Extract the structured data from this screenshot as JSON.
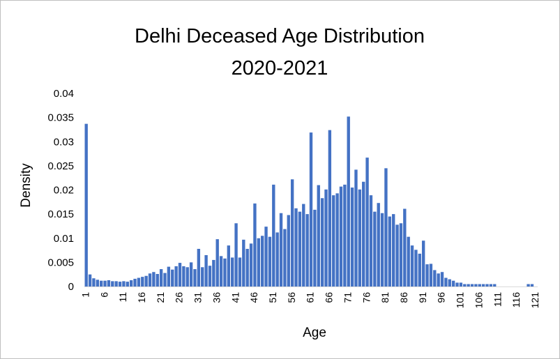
{
  "chart_data": {
    "type": "bar",
    "title_lines": [
      "Delhi Deceased Age Distribution",
      "2020-2021"
    ],
    "xlabel": "Age",
    "ylabel": "Density",
    "ylim": [
      0,
      0.04
    ],
    "yticks": [
      0,
      0.005,
      0.01,
      0.015,
      0.02,
      0.025,
      0.03,
      0.035,
      0.04
    ],
    "ytick_labels": [
      "0",
      "0.005",
      "0.01",
      "0.015",
      "0.02",
      "0.025",
      "0.03",
      "0.035",
      "0.04"
    ],
    "xtick_labels": [
      "1",
      "6",
      "11",
      "16",
      "21",
      "26",
      "31",
      "36",
      "41",
      "46",
      "51",
      "56",
      "61",
      "66",
      "71",
      "76",
      "81",
      "86",
      "91",
      "96",
      "101",
      "106",
      "111",
      "116",
      "121"
    ],
    "grid": false,
    "legend": "none",
    "bar_color": "#4472c4",
    "x": [
      1,
      2,
      3,
      4,
      5,
      6,
      7,
      8,
      9,
      10,
      11,
      12,
      13,
      14,
      15,
      16,
      17,
      18,
      19,
      20,
      21,
      22,
      23,
      24,
      25,
      26,
      27,
      28,
      29,
      30,
      31,
      32,
      33,
      34,
      35,
      36,
      37,
      38,
      39,
      40,
      41,
      42,
      43,
      44,
      45,
      46,
      47,
      48,
      49,
      50,
      51,
      52,
      53,
      54,
      55,
      56,
      57,
      58,
      59,
      60,
      61,
      62,
      63,
      64,
      65,
      66,
      67,
      68,
      69,
      70,
      71,
      72,
      73,
      74,
      75,
      76,
      77,
      78,
      79,
      80,
      81,
      82,
      83,
      84,
      85,
      86,
      87,
      88,
      89,
      90,
      91,
      92,
      93,
      94,
      95,
      96,
      97,
      98,
      99,
      100,
      101,
      102,
      103,
      104,
      105,
      106,
      107,
      108,
      109,
      110,
      111,
      112,
      113,
      114,
      115,
      116,
      117,
      118,
      119,
      120,
      121
    ],
    "values": [
      0.0337,
      0.0025,
      0.0017,
      0.0014,
      0.0012,
      0.0012,
      0.0013,
      0.0011,
      0.0011,
      0.001,
      0.0011,
      0.001,
      0.0013,
      0.0016,
      0.0018,
      0.002,
      0.0022,
      0.0027,
      0.003,
      0.0026,
      0.0036,
      0.0028,
      0.0041,
      0.0035,
      0.0042,
      0.0049,
      0.0042,
      0.004,
      0.005,
      0.0036,
      0.0078,
      0.004,
      0.0065,
      0.0043,
      0.0055,
      0.0098,
      0.0063,
      0.0058,
      0.0085,
      0.006,
      0.0131,
      0.006,
      0.0097,
      0.0078,
      0.0089,
      0.0172,
      0.01,
      0.0105,
      0.0124,
      0.0103,
      0.0211,
      0.0112,
      0.0152,
      0.0119,
      0.0148,
      0.0222,
      0.0162,
      0.0155,
      0.0171,
      0.015,
      0.0319,
      0.0159,
      0.021,
      0.0183,
      0.0201,
      0.0324,
      0.0189,
      0.0193,
      0.0207,
      0.0211,
      0.0352,
      0.0205,
      0.0242,
      0.0201,
      0.0217,
      0.0267,
      0.0189,
      0.0155,
      0.0173,
      0.0152,
      0.0245,
      0.0145,
      0.015,
      0.0128,
      0.0131,
      0.0161,
      0.0103,
      0.0085,
      0.0076,
      0.0068,
      0.0095,
      0.0046,
      0.0047,
      0.0034,
      0.0027,
      0.003,
      0.0018,
      0.0015,
      0.0012,
      0.0008,
      0.0008,
      0.0005,
      0.0005,
      0.0005,
      0.0005,
      0.0005,
      0.0005,
      0.0005,
      0.0005,
      0.0005,
      0,
      0,
      0,
      0,
      0,
      0,
      0,
      0,
      0.0005,
      0.0005,
      0
    ]
  }
}
